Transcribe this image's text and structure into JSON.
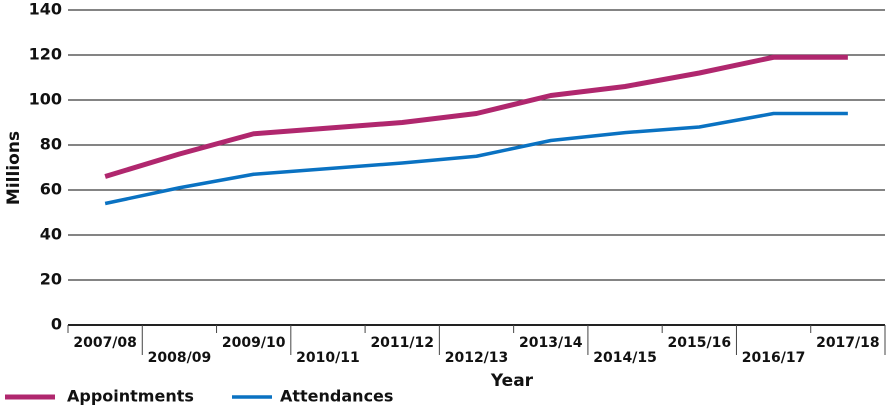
{
  "chart_data": {
    "type": "line",
    "x_label": "Year",
    "y_label": "Millions",
    "categories": [
      "2007/08",
      "2008/09",
      "2009/10",
      "2010/11",
      "2011/12",
      "2012/13",
      "2013/14",
      "2014/15",
      "2015/16",
      "2016/17",
      "2017/18"
    ],
    "series": [
      {
        "name": "Appointments",
        "color": "#b0276e",
        "values": [
          66,
          76,
          85,
          87.5,
          90,
          94,
          102,
          106,
          112,
          119,
          119
        ]
      },
      {
        "name": "Attendances",
        "color": "#0a72c2",
        "values": [
          54,
          61,
          67,
          69.5,
          72,
          75,
          82,
          85.5,
          88,
          94,
          94
        ]
      }
    ],
    "ylim": [
      0,
      140
    ],
    "yticks": [
      0,
      20,
      40,
      60,
      80,
      100,
      120,
      140
    ],
    "grid": true
  }
}
